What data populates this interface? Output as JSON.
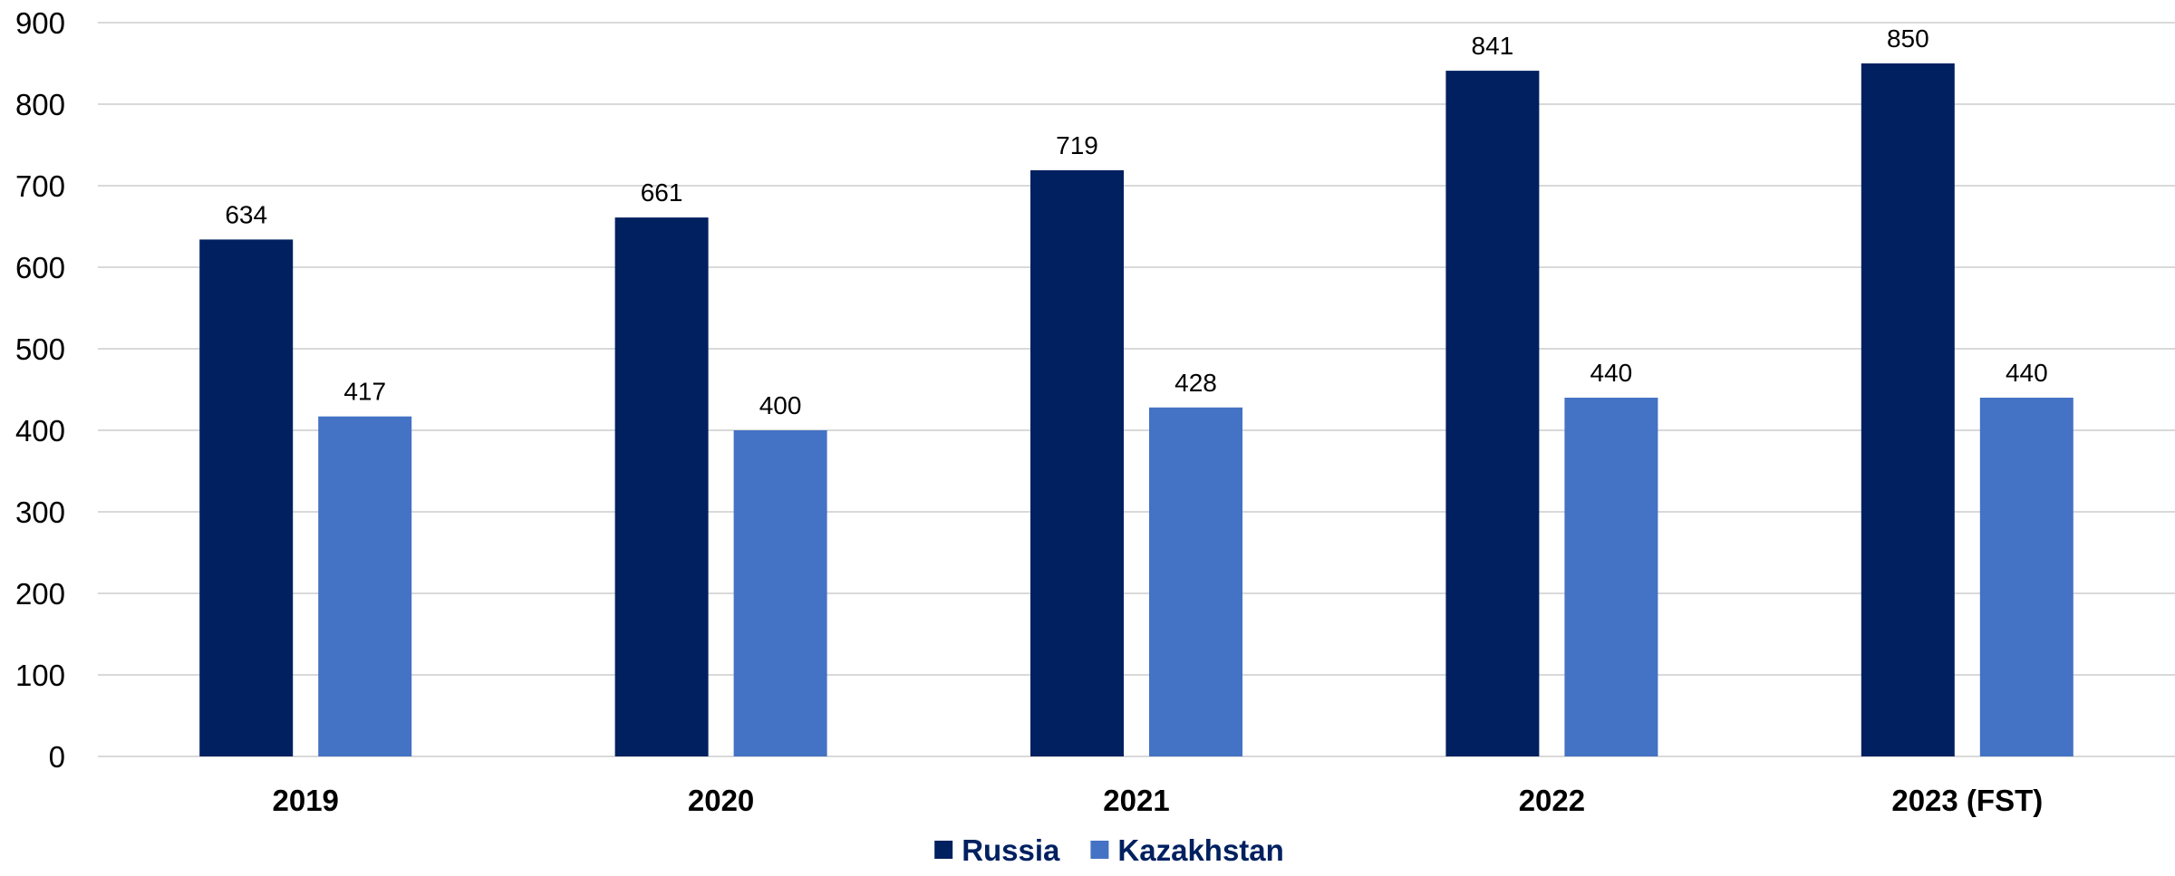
{
  "chart_data": {
    "type": "bar",
    "categories": [
      "2019",
      "2020",
      "2021",
      "2022",
      "2023 (FST)"
    ],
    "series": [
      {
        "name": "Russia",
        "color": "#002060",
        "values": [
          634,
          661,
          719,
          841,
          850
        ]
      },
      {
        "name": "Kazakhstan",
        "color": "#4472C4",
        "values": [
          417,
          400,
          428,
          440,
          440
        ]
      }
    ],
    "ylim": [
      0,
      900
    ],
    "yticks": [
      0,
      100,
      200,
      300,
      400,
      500,
      600,
      700,
      800,
      900
    ],
    "grid": true,
    "data_labels": true,
    "legend": {
      "position": "bottom"
    },
    "legend_text_color": "#002060"
  }
}
